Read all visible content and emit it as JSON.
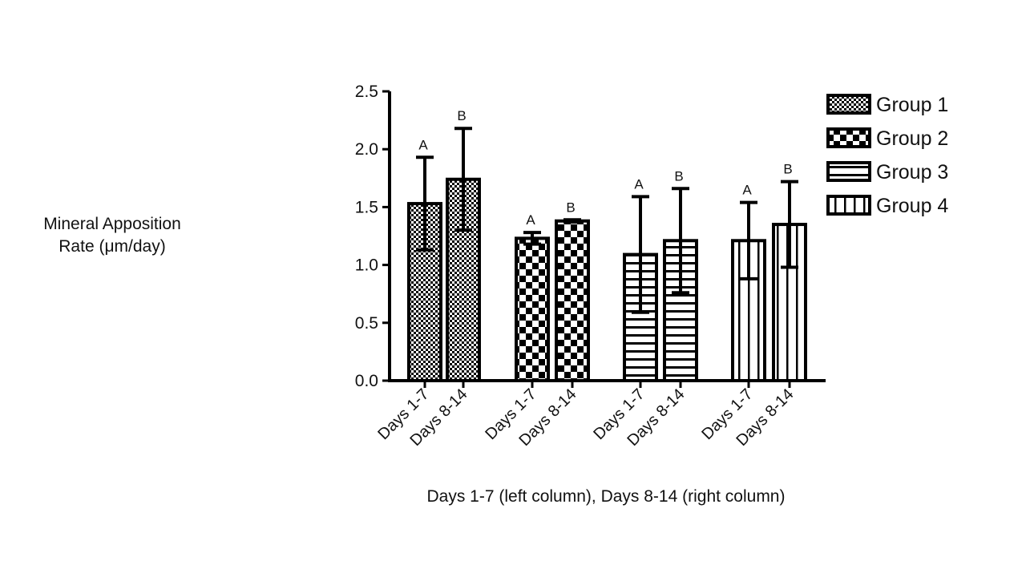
{
  "chart_data": {
    "type": "bar",
    "ylabel_lines": [
      "Mineral Apposition",
      "Rate (μm/day)"
    ],
    "xlabel": "Days 1-7 (left column), Days 8-14  (right column)",
    "ylim": [
      0,
      2.5
    ],
    "yticks": [
      "0.0",
      "0.5",
      "1.0",
      "1.5",
      "2.0",
      "2.5"
    ],
    "legend_position": "top-right",
    "bars": [
      {
        "group": "Group 1",
        "label": "Days 1-7",
        "value": 1.53,
        "error": 0.4,
        "letter": "A"
      },
      {
        "group": "Group 1",
        "label": "Days 8-14",
        "value": 1.74,
        "error": 0.44,
        "letter": "B"
      },
      {
        "group": "Group 2",
        "label": "Days 1-7",
        "value": 1.23,
        "error": 0.05,
        "letter": "A"
      },
      {
        "group": "Group 2",
        "label": "Days 8-14",
        "value": 1.38,
        "error": 0.01,
        "letter": "B"
      },
      {
        "group": "Group 3",
        "label": "Days 1-7",
        "value": 1.09,
        "error": 0.5,
        "letter": "A"
      },
      {
        "group": "Group 3",
        "label": "Days 8-14",
        "value": 1.21,
        "error": 0.45,
        "letter": "B"
      },
      {
        "group": "Group 4",
        "label": "Days 1-7",
        "value": 1.21,
        "error": 0.33,
        "letter": "A"
      },
      {
        "group": "Group 4",
        "label": "Days 8-14",
        "value": 1.35,
        "error": 0.37,
        "letter": "B"
      }
    ],
    "legend": [
      {
        "name": "Group 1",
        "pattern": "fine-checker"
      },
      {
        "name": "Group 2",
        "pattern": "checker"
      },
      {
        "name": "Group 3",
        "pattern": "horizontal-stripes"
      },
      {
        "name": "Group 4",
        "pattern": "vertical-stripes"
      }
    ]
  }
}
